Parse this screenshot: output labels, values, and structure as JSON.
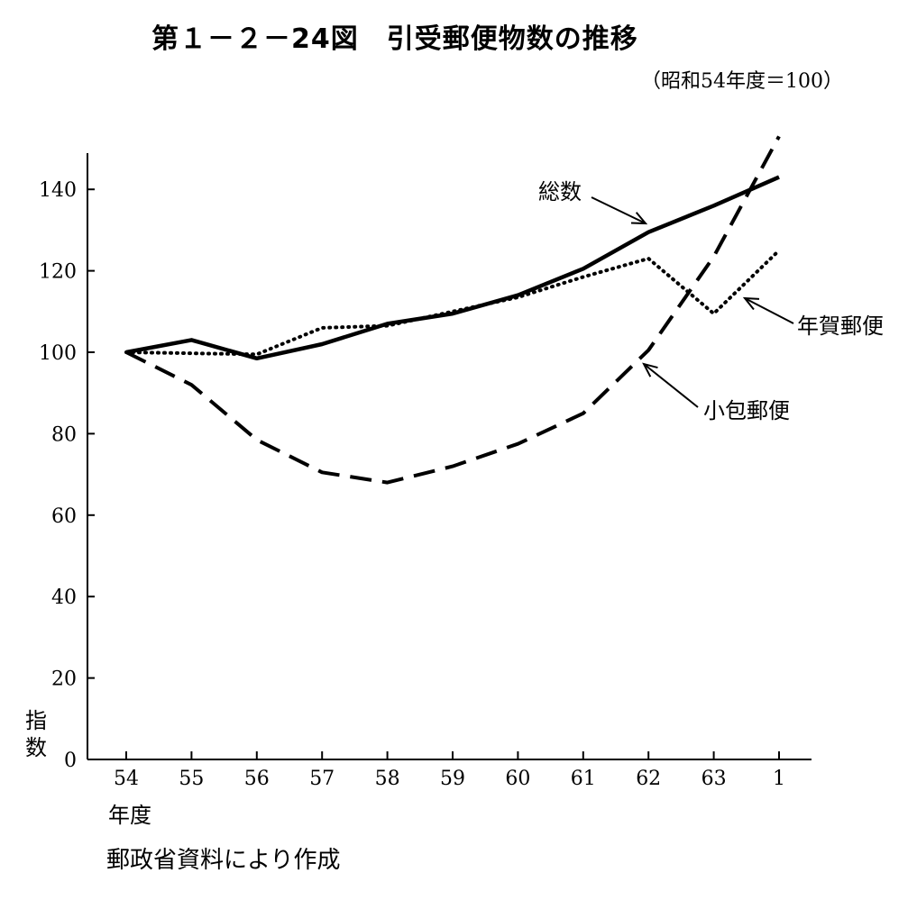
{
  "chart_data": {
    "type": "line",
    "title": "第１－２－24図　引受郵便物数の推移",
    "subtitle": "（昭和54年度＝100）",
    "xlabel": "年度",
    "ylabel_chars": [
      "指",
      "数"
    ],
    "categories": [
      "54",
      "55",
      "56",
      "57",
      "58",
      "59",
      "60",
      "61",
      "62",
      "63",
      "1"
    ],
    "ylim": [
      0,
      150
    ],
    "yticks": [
      0,
      20,
      40,
      60,
      80,
      100,
      120,
      140
    ],
    "grid": false,
    "series": [
      {
        "name": "総数",
        "style": "solid",
        "values": [
          100,
          103,
          98.5,
          102,
          107,
          109.5,
          114,
          120.5,
          129.5,
          136,
          143
        ]
      },
      {
        "name": "年賀郵便",
        "style": "dotted",
        "values": [
          100,
          null,
          99.5,
          106,
          106.5,
          null,
          113.5,
          118.5,
          123,
          109.5,
          125
        ]
      },
      {
        "name": "小包郵便",
        "style": "dashed",
        "values": [
          100,
          92,
          78.5,
          70.5,
          68,
          72,
          77.5,
          85,
          100.5,
          123.5,
          153
        ]
      }
    ]
  },
  "source_note": "郵政省資料により作成",
  "colors": {
    "ink": "#000000",
    "background": "#ffffff"
  }
}
